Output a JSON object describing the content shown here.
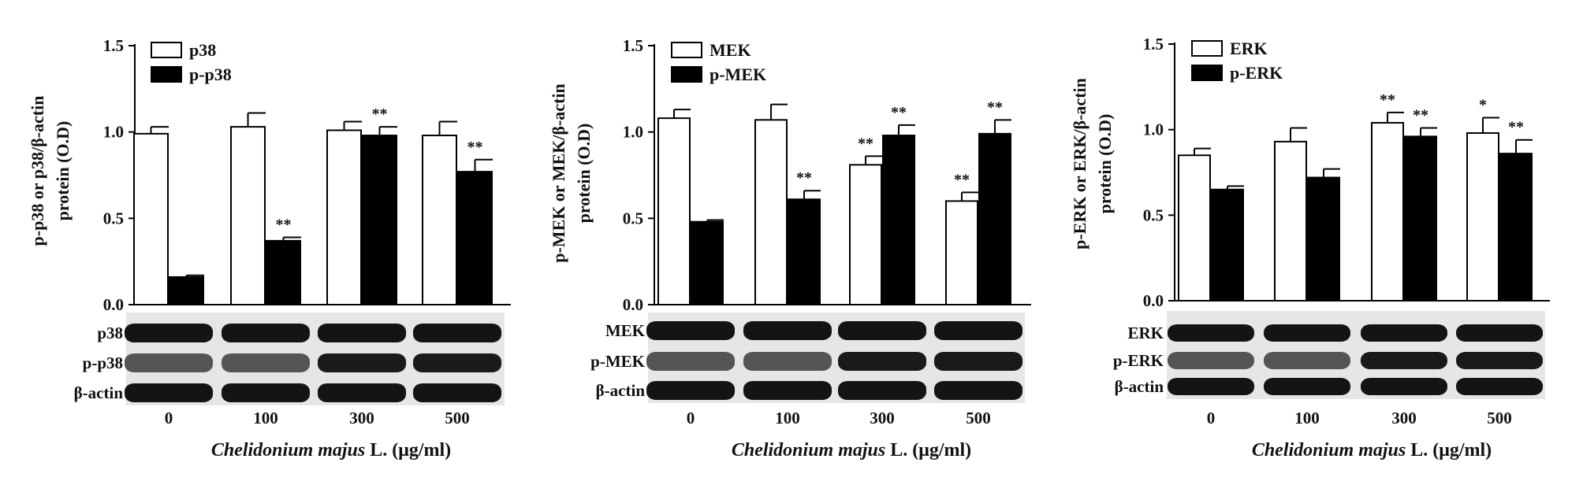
{
  "chart_data": [
    {
      "type": "bar",
      "ylabel_line1": "p-p38 or p38/β-actin",
      "ylabel_line2": "protein (O.D)",
      "ylim": [
        0,
        1.5
      ],
      "yticks": [
        "0.0",
        "0.5",
        "1.0",
        "1.5"
      ],
      "categories": [
        "0",
        "100",
        "300",
        "500"
      ],
      "xlabel_italic": "Chelidonium majus",
      "xlabel_rest": " L. (μg/ml)",
      "series": [
        {
          "name": "p38",
          "fill": "#ffffff",
          "values": [
            0.99,
            1.03,
            1.01,
            0.98
          ],
          "errors": [
            0.04,
            0.08,
            0.05,
            0.08
          ],
          "sig": [
            "",
            "",
            "",
            ""
          ]
        },
        {
          "name": "p-p38",
          "fill": "#000000",
          "values": [
            0.16,
            0.37,
            0.98,
            0.77
          ],
          "errors": [
            0.01,
            0.02,
            0.05,
            0.07
          ],
          "sig": [
            "",
            "**",
            "**",
            "**"
          ]
        }
      ],
      "blot_labels": [
        "p38",
        "p-p38",
        "β-actin"
      ]
    },
    {
      "type": "bar",
      "ylabel_line1": "p-MEK or MEK/β-actin",
      "ylabel_line2": "protein (O.D)",
      "ylim": [
        0,
        1.5
      ],
      "yticks": [
        "0.0",
        "0.5",
        "1.0",
        "1.5"
      ],
      "categories": [
        "0",
        "100",
        "300",
        "500"
      ],
      "xlabel_italic": "Chelidonium majus",
      "xlabel_rest": " L. (μg/ml)",
      "series": [
        {
          "name": "MEK",
          "fill": "#ffffff",
          "values": [
            1.08,
            1.07,
            0.81,
            0.6
          ],
          "errors": [
            0.05,
            0.09,
            0.05,
            0.05
          ],
          "sig": [
            "",
            "",
            "**",
            "**"
          ]
        },
        {
          "name": "p-MEK",
          "fill": "#000000",
          "values": [
            0.48,
            0.61,
            0.98,
            0.99
          ],
          "errors": [
            0.01,
            0.05,
            0.06,
            0.08
          ],
          "sig": [
            "",
            "**",
            "**",
            "**"
          ]
        }
      ],
      "blot_labels": [
        "MEK",
        "p-MEK",
        "β-actin"
      ]
    },
    {
      "type": "bar",
      "ylabel_line1": "p-ERK or ERK/β-actin",
      "ylabel_line2": "protein (O.D)",
      "ylim": [
        0,
        1.5
      ],
      "yticks": [
        "0.0",
        "0.5",
        "1.0",
        "1.5"
      ],
      "categories": [
        "0",
        "100",
        "300",
        "500"
      ],
      "xlabel_italic": "Chelidonium majus",
      "xlabel_rest": " L. (μg/ml)",
      "series": [
        {
          "name": "ERK",
          "fill": "#ffffff",
          "values": [
            0.85,
            0.93,
            1.04,
            0.98
          ],
          "errors": [
            0.04,
            0.08,
            0.06,
            0.09
          ],
          "sig": [
            "",
            "",
            "**",
            "*"
          ]
        },
        {
          "name": "p-ERK",
          "fill": "#000000",
          "values": [
            0.65,
            0.72,
            0.96,
            0.86
          ],
          "errors": [
            0.02,
            0.05,
            0.05,
            0.08
          ],
          "sig": [
            "",
            "",
            "**",
            "**"
          ]
        }
      ],
      "blot_labels": [
        "ERK",
        "p-ERK",
        "β-actin"
      ]
    }
  ]
}
